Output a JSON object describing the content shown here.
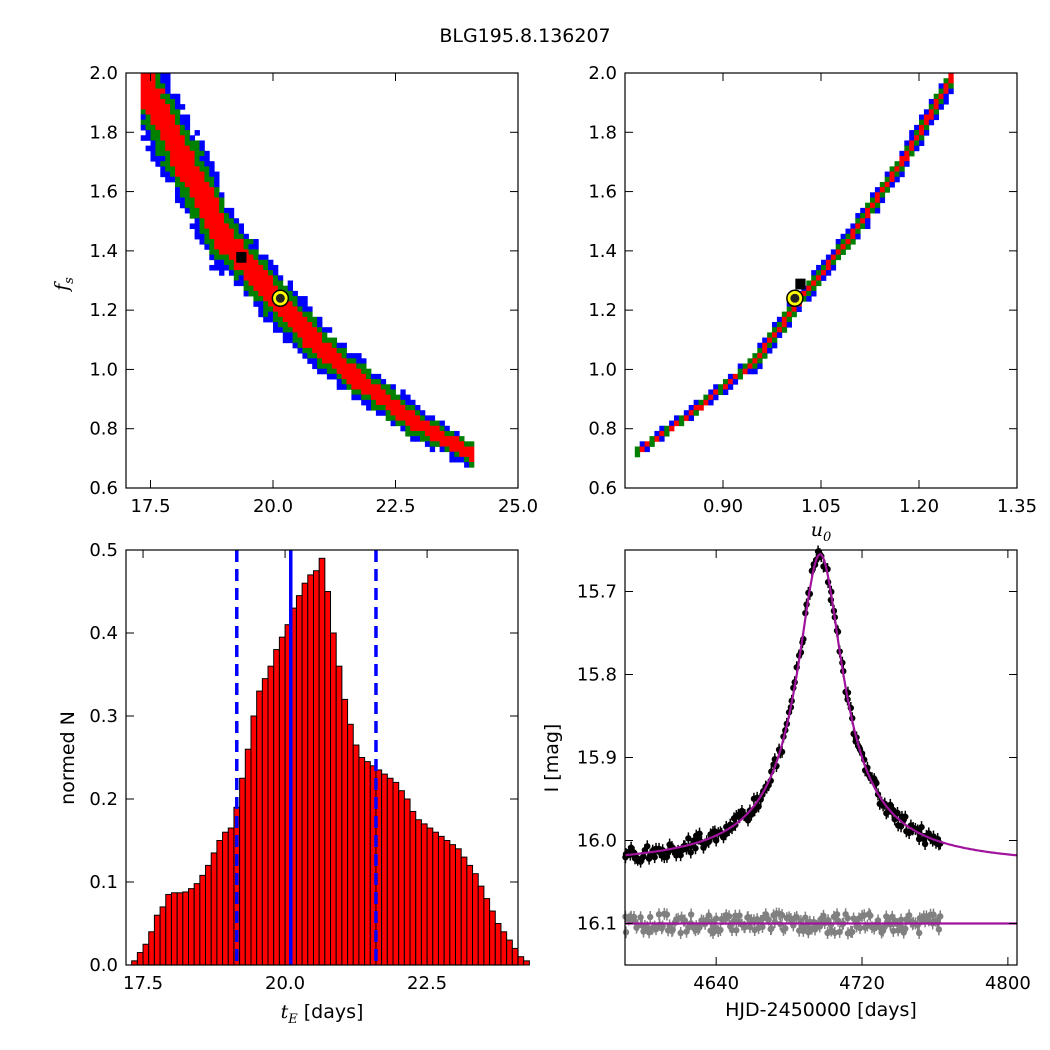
{
  "figure": {
    "title": "BLG195.8.136207",
    "colors": {
      "sigma1": "#ff0000",
      "sigma2": "#008000",
      "sigma3": "#0000ff",
      "density_peak": "#000000",
      "best_fit_fill": "#222222",
      "best_fit_ring": "#ffff00",
      "hist_bar": "#ff0000",
      "hist_edge": "#000000",
      "hist_lines": "#0000ff",
      "model_curve": "#a0139c",
      "data_points": "#000000",
      "residual_points": "#808080"
    }
  },
  "panels": {
    "top_left": {
      "ylabel_main": "f",
      "ylabel_sub": "s",
      "xticks": [
        "17.5",
        "20.0",
        "22.5",
        "25.0"
      ],
      "yticks": [
        "0.6",
        "0.8",
        "1.0",
        "1.2",
        "1.4",
        "1.6",
        "1.8",
        "2.0"
      ]
    },
    "top_right": {
      "xlabel_main": "u",
      "xlabel_sub": "0",
      "xticks": [
        "0.90",
        "1.05",
        "1.20",
        "1.35"
      ],
      "yticks": [
        "0.6",
        "0.8",
        "1.0",
        "1.2",
        "1.4",
        "1.6",
        "1.8",
        "2.0"
      ]
    },
    "bottom_left": {
      "xlabel_main": "t",
      "xlabel_sub": "E",
      "xlabel_rest": " [days]",
      "ylabel": "normed N",
      "xticks": [
        "17.5",
        "20.0",
        "22.5"
      ],
      "yticks": [
        "0.0",
        "0.1",
        "0.2",
        "0.3",
        "0.4",
        "0.5"
      ]
    },
    "bottom_right": {
      "xlabel": "HJD-2450000 [days]",
      "ylabel": "I [mag]",
      "xticks": [
        "4640",
        "4720",
        "4800"
      ],
      "yticks": [
        "15.7",
        "15.8",
        "15.9",
        "16.0",
        "16.1"
      ]
    }
  },
  "chart_data": [
    {
      "type": "scatter",
      "panel": "top_left",
      "description_source": "posterior density of f_s vs t_E with 1/2/3 sigma regions",
      "xlim": [
        17.0,
        25.0
      ],
      "ylim": [
        0.6,
        2.0
      ],
      "ridge": {
        "x": [
          17.3,
          18.0,
          19.0,
          20.0,
          21.0,
          22.0,
          23.0,
          24.0
        ],
        "y": [
          2.0,
          1.76,
          1.45,
          1.25,
          1.07,
          0.93,
          0.81,
          0.72
        ]
      },
      "half_width_sigma": [
        0.25,
        0.42,
        0.55
      ],
      "x_range": [
        17.3,
        24.1
      ],
      "best_fit": {
        "x": 20.15,
        "y": 1.24
      },
      "density_peak": {
        "x": 19.4,
        "y": 1.37
      }
    },
    {
      "type": "scatter",
      "panel": "top_right",
      "description_source": "posterior density of f_s vs u_0 with 1/2/3 sigma regions",
      "xlim": [
        0.75,
        1.35
      ],
      "ylim": [
        0.6,
        2.0
      ],
      "ridge": {
        "x": [
          0.765,
          0.85,
          0.95,
          1.02,
          1.1,
          1.18,
          1.255
        ],
        "y": [
          0.72,
          0.85,
          1.03,
          1.24,
          1.46,
          1.72,
          2.0
        ]
      },
      "half_width_sigma": [
        0.004,
        0.008,
        0.012
      ],
      "x_range": [
        0.765,
        1.255
      ],
      "best_fit": {
        "x": 1.01,
        "y": 1.24
      },
      "density_peak": {
        "x": 1.022,
        "y": 1.28
      }
    },
    {
      "type": "bar",
      "panel": "bottom_left",
      "xlim": [
        17.2,
        24.1
      ],
      "ylim": [
        0.0,
        0.5
      ],
      "bin_start": 17.3,
      "bin_width": 0.1,
      "values": [
        0.005,
        0.015,
        0.025,
        0.04,
        0.06,
        0.07,
        0.085,
        0.087,
        0.087,
        0.088,
        0.092,
        0.098,
        0.108,
        0.12,
        0.135,
        0.15,
        0.16,
        0.165,
        0.19,
        0.225,
        0.26,
        0.3,
        0.33,
        0.345,
        0.36,
        0.38,
        0.395,
        0.41,
        0.43,
        0.445,
        0.46,
        0.47,
        0.475,
        0.49,
        0.45,
        0.4,
        0.36,
        0.32,
        0.29,
        0.265,
        0.25,
        0.245,
        0.24,
        0.235,
        0.23,
        0.225,
        0.22,
        0.21,
        0.2,
        0.185,
        0.175,
        0.17,
        0.165,
        0.16,
        0.155,
        0.15,
        0.145,
        0.14,
        0.13,
        0.12,
        0.11,
        0.095,
        0.08,
        0.065,
        0.05,
        0.04,
        0.03,
        0.02,
        0.01,
        0.005
      ],
      "median_line": 20.1,
      "bound_lines": [
        19.15,
        21.6
      ]
    },
    {
      "type": "line",
      "panel": "bottom_right",
      "xlim": [
        4590,
        4805
      ],
      "ylim": [
        16.15,
        15.65
      ],
      "model": {
        "t0": 4697,
        "baseline": 16.032,
        "peak": 15.655,
        "width": 14
      },
      "residual_offset": 16.1,
      "data_x_range": [
        4590,
        4763
      ],
      "data_scatter": 0.01,
      "residual_scatter": 0.012,
      "n_points": 190
    }
  ]
}
